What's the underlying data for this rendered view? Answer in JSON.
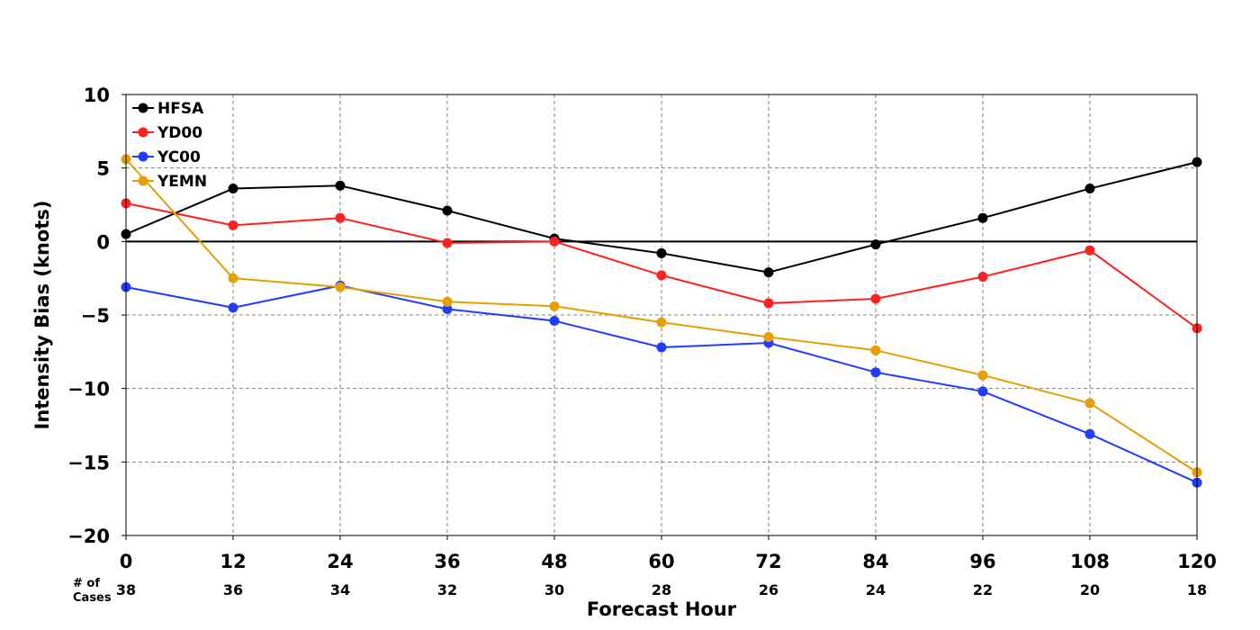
{
  "chart_data": {
    "type": "line",
    "title": "",
    "xlabel": "Forecast Hour",
    "ylabel": "Intensity Bias (knots)",
    "x": [
      0,
      12,
      24,
      36,
      48,
      60,
      72,
      84,
      96,
      108,
      120
    ],
    "x_tick_labels": [
      "0",
      "12",
      "24",
      "36",
      "48",
      "60",
      "72",
      "84",
      "96",
      "108",
      "120"
    ],
    "xlim": [
      0,
      120
    ],
    "ylim": [
      -20,
      10
    ],
    "y_ticks": [
      10,
      5,
      0,
      -5,
      -10,
      -15,
      -20
    ],
    "y_tick_labels": [
      "10",
      "5",
      "0",
      "−5",
      "−10",
      "−15",
      "−20"
    ],
    "grid": true,
    "zero_line": true,
    "cases_label": [
      "# of",
      "Cases"
    ],
    "cases": [
      "38",
      "36",
      "34",
      "32",
      "30",
      "28",
      "26",
      "24",
      "22",
      "20",
      "18"
    ],
    "legend_position": "top-left",
    "series": [
      {
        "name": "HFSA",
        "color": "#000000",
        "values": [
          0.5,
          3.6,
          3.8,
          2.1,
          0.2,
          -0.8,
          -2.1,
          -0.2,
          1.6,
          3.6,
          5.4
        ]
      },
      {
        "name": "YD00",
        "color": "#ff2020",
        "values": [
          2.6,
          1.1,
          1.6,
          -0.1,
          0.0,
          -2.3,
          -4.2,
          -3.9,
          -2.4,
          -0.6,
          -5.9
        ]
      },
      {
        "name": "YC00",
        "color": "#1f3cff",
        "values": [
          -3.1,
          -4.5,
          -3.0,
          -4.6,
          -5.4,
          -7.2,
          -6.9,
          -8.9,
          -10.2,
          -13.1,
          -16.4
        ]
      },
      {
        "name": "YEMN",
        "color": "#e69f00",
        "values": [
          5.6,
          -2.5,
          -3.1,
          -4.1,
          -4.4,
          -5.5,
          -6.5,
          -7.4,
          -9.1,
          -11.0,
          -15.7
        ]
      }
    ]
  }
}
